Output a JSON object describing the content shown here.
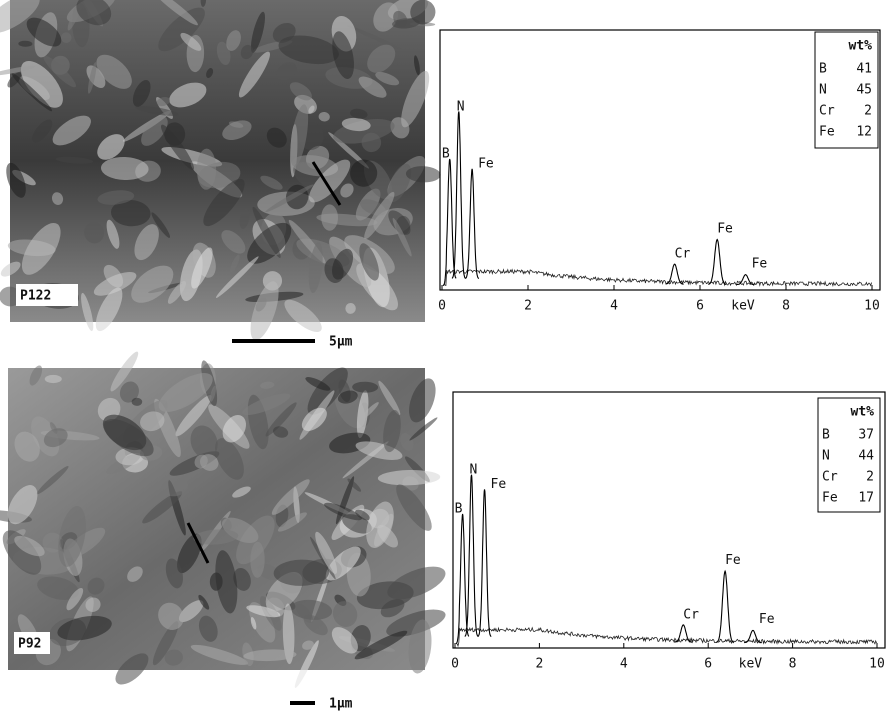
{
  "figure": {
    "panels": [
      {
        "image_label": "P122",
        "scale_label": "5μm",
        "spectrum": {
          "xlim": [
            0,
            10
          ],
          "xticks": [
            0,
            2,
            4,
            6,
            8,
            10
          ],
          "xlabel": "keV",
          "peaks": [
            {
              "label": "B",
              "x": 0.18,
              "y": 48
            },
            {
              "label": "N",
              "x": 0.39,
              "y": 67
            },
            {
              "label": "Fe",
              "x": 0.7,
              "y": 44
            },
            {
              "label": "Cr",
              "x": 5.41,
              "y": 8
            },
            {
              "label": "Fe",
              "x": 6.4,
              "y": 18
            },
            {
              "label": "Fe",
              "x": 7.06,
              "y": 4
            }
          ],
          "composition": {
            "header": "wt%",
            "rows": [
              [
                "B",
                41
              ],
              [
                "N",
                45
              ],
              [
                "Cr",
                2
              ],
              [
                "Fe",
                12
              ]
            ]
          }
        }
      },
      {
        "image_label": "P92",
        "scale_label": "1μm",
        "spectrum": {
          "xlim": [
            0,
            10
          ],
          "xticks": [
            0,
            2,
            4,
            6,
            8,
            10
          ],
          "xlabel": "keV",
          "peaks": [
            {
              "label": "B",
              "x": 0.18,
              "y": 50
            },
            {
              "label": "N",
              "x": 0.39,
              "y": 66
            },
            {
              "label": "Fe",
              "x": 0.7,
              "y": 60
            },
            {
              "label": "Cr",
              "x": 5.41,
              "y": 7
            },
            {
              "label": "Fe",
              "x": 6.4,
              "y": 29
            },
            {
              "label": "Fe",
              "x": 7.06,
              "y": 5
            }
          ],
          "composition": {
            "header": "wt%",
            "rows": [
              [
                "B",
                37
              ],
              [
                "N",
                44
              ],
              [
                "Cr",
                2
              ],
              [
                "Fe",
                17
              ]
            ]
          }
        }
      }
    ]
  }
}
